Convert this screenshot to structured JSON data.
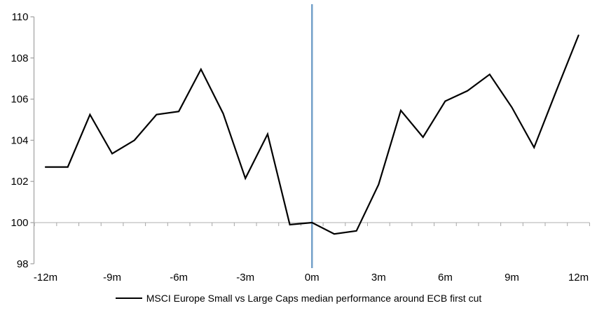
{
  "chart_data": {
    "type": "line",
    "title": "",
    "xlabel": "",
    "ylabel": "",
    "ylim": [
      98,
      110
    ],
    "y_ticks": [
      98,
      100,
      102,
      104,
      106,
      108,
      110
    ],
    "x_tick_labels": [
      "-12m",
      "-9m",
      "-6m",
      "-3m",
      "0m",
      "3m",
      "6m",
      "9m",
      "12m"
    ],
    "x_tick_label_every_n_months": 3,
    "x_months": [
      -12,
      -11,
      -10,
      -9,
      -8,
      -7,
      -6,
      -5,
      -4,
      -3,
      -2,
      -1,
      0,
      1,
      2,
      3,
      4,
      5,
      6,
      7,
      8,
      9,
      10,
      11,
      12
    ],
    "series": [
      {
        "name": "MSCI Europe Small vs Large Caps median performance around ECB first cut",
        "color": "#000000",
        "values": [
          102.7,
          102.7,
          105.25,
          103.35,
          104.0,
          105.25,
          105.4,
          107.45,
          105.3,
          102.15,
          104.3,
          99.9,
          100.0,
          99.45,
          99.6,
          101.85,
          105.45,
          104.15,
          105.9,
          106.4,
          107.2,
          105.6,
          103.65,
          106.4,
          109.1
        ]
      }
    ],
    "event_line": {
      "x_month": 0,
      "color": "#74a1c9",
      "meaning": "ECB first cut (0m)"
    },
    "baseline": {
      "value": 100,
      "color": "#bfbfbf"
    },
    "grid": "off",
    "legend_position": "bottom-center"
  },
  "legend": {
    "label": "MSCI Europe Small vs Large Caps median performance around ECB first cut"
  },
  "colors": {
    "series_line": "#000000",
    "event_line": "#74a1c9",
    "baseline_100": "#bfbfbf",
    "axis": "#a6a6a6",
    "tick_text": "#000000",
    "background": "#ffffff"
  }
}
